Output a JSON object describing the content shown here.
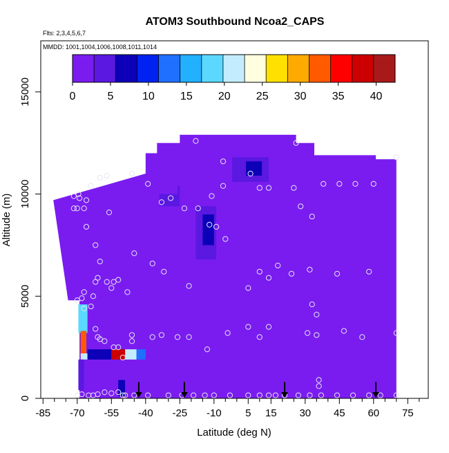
{
  "chart_data": {
    "type": "heatmap",
    "title": "ATOM3 Southbound Ncoa2_CAPS",
    "flights_label": "Flts: 2,3,4,5,6,7",
    "dates_label": "MMDD: 1001,1004,1006,1008,1011,1014",
    "xlabel": "Latitude (deg N)",
    "ylabel": "Altitude (m)",
    "xlim": [
      -86,
      84
    ],
    "ylim": [
      0,
      17500
    ],
    "x_ticks": [
      -85,
      -70,
      -55,
      -40,
      -25,
      -10,
      5,
      15,
      30,
      45,
      60,
      75
    ],
    "x_tick_labels": [
      "-85",
      "-70",
      "-55",
      "-40",
      "-25",
      "-10",
      "5",
      "15",
      "30",
      "45",
      "60",
      "75"
    ],
    "x_minor_ticks": [
      -80,
      -75,
      -65,
      -60,
      -50,
      -45,
      -35,
      -30,
      -20,
      -15,
      -5,
      0,
      10,
      20,
      25,
      35,
      40,
      50,
      55,
      65,
      70,
      80
    ],
    "y_ticks": [
      0,
      5000,
      10000,
      15000
    ],
    "y_tick_labels": [
      "0",
      "5000",
      "10000",
      "15000"
    ],
    "colorbar": {
      "min": 0,
      "max": 42.5,
      "ticks": [
        0,
        5,
        10,
        15,
        20,
        25,
        30,
        35,
        40
      ],
      "tick_labels": [
        "0",
        "5",
        "10",
        "15",
        "20",
        "25",
        "30",
        "35",
        "40"
      ],
      "colors": [
        "#7a1cf0",
        "#5a18e0",
        "#0c00b8",
        "#0022f0",
        "#1f70ff",
        "#22b0ff",
        "#5ad8ff",
        "#c4ecff",
        "#ffffe0",
        "#ffe000",
        "#ffaa00",
        "#ff5a00",
        "#ff0000",
        "#cc0000",
        "#a81a1a"
      ]
    },
    "background_value": 1,
    "domain_polygon": [
      [
        -80.5,
        9950
      ],
      [
        -80.5,
        9700
      ],
      [
        -40,
        11000
      ],
      [
        -40,
        12000
      ],
      [
        -35,
        12000
      ],
      [
        -35,
        12500
      ],
      [
        -25,
        12500
      ],
      [
        -25,
        12900
      ],
      [
        26,
        12900
      ],
      [
        26,
        12500
      ],
      [
        34,
        12500
      ],
      [
        34,
        11900
      ],
      [
        61,
        11900
      ],
      [
        61,
        11700
      ],
      [
        70,
        11700
      ],
      [
        70,
        0
      ],
      [
        -69,
        0
      ],
      [
        -69,
        4800
      ],
      [
        -74,
        4800
      ],
      [
        -80.5,
        9700
      ]
    ],
    "value_patches": [
      {
        "lat_range": [
          -34,
          -25
        ],
        "alt_range": [
          9400,
          10400
        ],
        "value": 4
      },
      {
        "lat_range": [
          -38,
          -26
        ],
        "alt_range": [
          10000,
          10600
        ],
        "value": 2
      },
      {
        "lat_range": [
          -18,
          -9
        ],
        "alt_range": [
          6800,
          9400
        ],
        "value": 3
      },
      {
        "lat_range": [
          -15,
          -10
        ],
        "alt_range": [
          7500,
          9000
        ],
        "value": 6
      },
      {
        "lat_range": [
          -2,
          14
        ],
        "alt_range": [
          10600,
          11800
        ],
        "value": 4
      },
      {
        "lat_range": [
          4,
          11
        ],
        "alt_range": [
          10900,
          11600
        ],
        "value": 6
      },
      {
        "lat_range": [
          48,
          55
        ],
        "alt_range": [
          2800,
          8200
        ],
        "value": 2
      },
      {
        "lat_range": [
          -40,
          -33
        ],
        "alt_range": [
          3500,
          3900
        ],
        "value": 2
      },
      {
        "lat_range": [
          -69.5,
          -65.5
        ],
        "alt_range": [
          3200,
          4600
        ],
        "value": 18
      },
      {
        "lat_range": [
          -68.5,
          -66
        ],
        "alt_range": [
          2100,
          3300
        ],
        "value": 32
      },
      {
        "lat_range": [
          -68.5,
          -65.5
        ],
        "alt_range": [
          1900,
          2200
        ],
        "value": 22
      },
      {
        "lat_range": [
          -65.5,
          -55
        ],
        "alt_range": [
          1900,
          2400
        ],
        "value": 8
      },
      {
        "lat_range": [
          -55,
          -49
        ],
        "alt_range": [
          1900,
          2400
        ],
        "value": 38
      },
      {
        "lat_range": [
          -49,
          -44
        ],
        "alt_range": [
          1900,
          2400
        ],
        "value": 22
      },
      {
        "lat_range": [
          -44,
          -40
        ],
        "alt_range": [
          1900,
          2400
        ],
        "value": 14
      },
      {
        "lat_range": [
          -69.5,
          -67
        ],
        "alt_range": [
          400,
          1900
        ],
        "value": 5
      },
      {
        "lat_range": [
          -52,
          -49
        ],
        "alt_range": [
          100,
          900
        ],
        "value": 6
      }
    ],
    "sample_points": [
      [
        -69.5,
        10000
      ],
      [
        -69,
        9800
      ],
      [
        -71.5,
        9900
      ],
      [
        -71.5,
        9300
      ],
      [
        -70,
        9300
      ],
      [
        -67,
        9300
      ],
      [
        -66,
        9700
      ],
      [
        -64,
        10400
      ],
      [
        -60,
        10800
      ],
      [
        -57,
        10900
      ],
      [
        -56,
        9100
      ],
      [
        -46,
        11000
      ],
      [
        -39,
        10500
      ],
      [
        -33,
        9600
      ],
      [
        -29,
        9800
      ],
      [
        -23,
        9300
      ],
      [
        -18,
        12600
      ],
      [
        -11,
        9900
      ],
      [
        -6,
        10400
      ],
      [
        -6,
        11600
      ],
      [
        -9,
        8400
      ],
      [
        -17,
        9300
      ],
      [
        -12,
        8500
      ],
      [
        -5,
        7800
      ],
      [
        6,
        11000
      ],
      [
        10,
        10300
      ],
      [
        14,
        10300
      ],
      [
        25,
        10300
      ],
      [
        26,
        12500
      ],
      [
        28,
        9400
      ],
      [
        33,
        8900
      ],
      [
        38,
        10500
      ],
      [
        45,
        10500
      ],
      [
        52,
        10500
      ],
      [
        60,
        10500
      ],
      [
        70,
        11800
      ],
      [
        -66,
        8400
      ],
      [
        -62,
        7500
      ],
      [
        -60,
        6700
      ],
      [
        -61,
        5900
      ],
      [
        -62,
        5700
      ],
      [
        -57,
        5700
      ],
      [
        -55,
        5400
      ],
      [
        -54,
        5700
      ],
      [
        -52,
        5800
      ],
      [
        -48,
        5200
      ],
      [
        -45,
        7100
      ],
      [
        -37,
        6600
      ],
      [
        -32,
        6200
      ],
      [
        -21,
        5500
      ],
      [
        5,
        5400
      ],
      [
        10,
        6200
      ],
      [
        14,
        5900
      ],
      [
        18,
        6500
      ],
      [
        24,
        6100
      ],
      [
        32,
        6300
      ],
      [
        33,
        4600
      ],
      [
        35,
        4100
      ],
      [
        44,
        6100
      ],
      [
        58,
        6200
      ],
      [
        -70,
        4800
      ],
      [
        -68,
        4900
      ],
      [
        -67,
        5200
      ],
      [
        -67,
        4400
      ],
      [
        -64,
        4500
      ],
      [
        -63,
        5000
      ],
      [
        -62,
        3400
      ],
      [
        -61,
        3000
      ],
      [
        -60,
        2900
      ],
      [
        -58,
        2800
      ],
      [
        -54,
        2500
      ],
      [
        -52,
        2500
      ],
      [
        -50,
        2000
      ],
      [
        -46,
        3100
      ],
      [
        -46,
        2800
      ],
      [
        -37,
        3000
      ],
      [
        -33,
        3100
      ],
      [
        -26,
        3000
      ],
      [
        -21,
        3000
      ],
      [
        -13,
        2400
      ],
      [
        -4,
        3200
      ],
      [
        5,
        3500
      ],
      [
        10,
        3000
      ],
      [
        14,
        3500
      ],
      [
        31,
        3200
      ],
      [
        35,
        3100
      ],
      [
        47,
        3300
      ],
      [
        55,
        3000
      ],
      [
        70,
        3200
      ],
      [
        -70,
        150
      ],
      [
        -68,
        200
      ],
      [
        -65,
        150
      ],
      [
        -63,
        150
      ],
      [
        -61,
        200
      ],
      [
        -58,
        300
      ],
      [
        -55,
        250
      ],
      [
        -52,
        300
      ],
      [
        -50,
        150
      ],
      [
        -49,
        150
      ],
      [
        -45,
        150
      ],
      [
        -39,
        150
      ],
      [
        -30,
        150
      ],
      [
        -24,
        150
      ],
      [
        -19,
        150
      ],
      [
        -14,
        150
      ],
      [
        -10,
        150
      ],
      [
        -3,
        150
      ],
      [
        5,
        150
      ],
      [
        10,
        150
      ],
      [
        14,
        150
      ],
      [
        17,
        150
      ],
      [
        21,
        150
      ],
      [
        27,
        150
      ],
      [
        32,
        150
      ],
      [
        36,
        600
      ],
      [
        36,
        900
      ],
      [
        37,
        150
      ],
      [
        44,
        150
      ],
      [
        51,
        150
      ],
      [
        58,
        150
      ],
      [
        63,
        150
      ],
      [
        70,
        150
      ]
    ],
    "arrow_latitudes": [
      -43,
      -23,
      21,
      61
    ],
    "arrow_alt_range": [
      800,
      0
    ]
  }
}
